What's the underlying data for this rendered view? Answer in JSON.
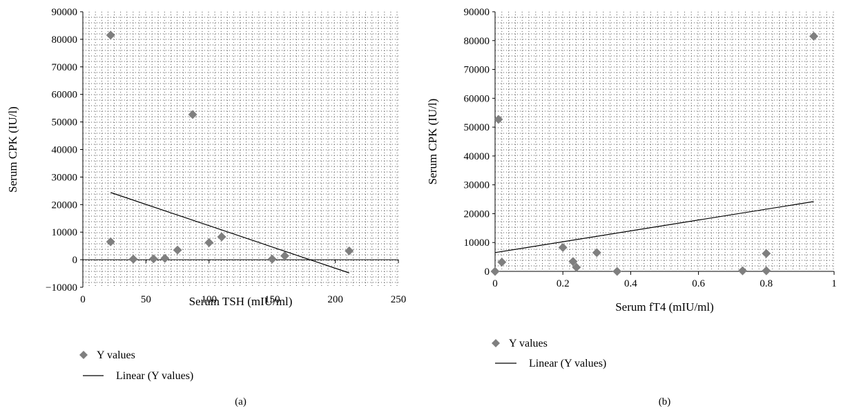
{
  "chart_data": [
    {
      "type": "scatter",
      "panel_label": "(a)",
      "xlabel": "Serum TSH (mIU/ml)",
      "ylabel": "Serum CPK (IU/l)",
      "xlim": [
        0,
        250
      ],
      "ylim": [
        -10000,
        90000
      ],
      "xticks": [
        0,
        50,
        100,
        150,
        200,
        250
      ],
      "yticks": [
        -10000,
        0,
        10000,
        20000,
        30000,
        40000,
        50000,
        60000,
        70000,
        80000,
        90000
      ],
      "grid": "dotted",
      "legend_position": "bottom-left",
      "series": [
        {
          "name": "Y values",
          "kind": "scatter",
          "marker": "diamond",
          "color": "#7f7f7f",
          "points": [
            {
              "x": 22,
              "y": 81500
            },
            {
              "x": 22,
              "y": 6500
            },
            {
              "x": 40,
              "y": 200
            },
            {
              "x": 56,
              "y": 300
            },
            {
              "x": 65,
              "y": 500
            },
            {
              "x": 75,
              "y": 3500
            },
            {
              "x": 87,
              "y": 52700
            },
            {
              "x": 100,
              "y": 6200
            },
            {
              "x": 110,
              "y": 8300
            },
            {
              "x": 150,
              "y": 200
            },
            {
              "x": 160,
              "y": 1400
            },
            {
              "x": 211,
              "y": 3200
            }
          ]
        },
        {
          "name": "Linear (Y values)",
          "kind": "line",
          "color": "#000000",
          "points": [
            {
              "x": 22,
              "y": 24400
            },
            {
              "x": 211,
              "y": -4800
            }
          ]
        }
      ]
    },
    {
      "type": "scatter",
      "panel_label": "(b)",
      "xlabel": "Serum fT4 (mIU/ml)",
      "ylabel": "Serum CPK (IU/l)",
      "xlim": [
        0,
        1
      ],
      "ylim": [
        0,
        90000
      ],
      "xticks": [
        0,
        0.2,
        0.4,
        0.6,
        0.8,
        1
      ],
      "yticks": [
        0,
        10000,
        20000,
        30000,
        40000,
        50000,
        60000,
        70000,
        80000,
        90000
      ],
      "grid": "dotted",
      "legend_position": "bottom-left",
      "series": [
        {
          "name": "Y values",
          "kind": "scatter",
          "marker": "diamond",
          "color": "#7f7f7f",
          "points": [
            {
              "x": 0.0,
              "y": 0
            },
            {
              "x": 0.01,
              "y": 52700
            },
            {
              "x": 0.02,
              "y": 3200
            },
            {
              "x": 0.2,
              "y": 8300
            },
            {
              "x": 0.23,
              "y": 3400
            },
            {
              "x": 0.24,
              "y": 1400
            },
            {
              "x": 0.3,
              "y": 6500
            },
            {
              "x": 0.36,
              "y": 0
            },
            {
              "x": 0.73,
              "y": 200
            },
            {
              "x": 0.8,
              "y": 6200
            },
            {
              "x": 0.8,
              "y": 200
            },
            {
              "x": 0.94,
              "y": 81500
            }
          ]
        },
        {
          "name": "Linear (Y values)",
          "kind": "line",
          "color": "#000000",
          "points": [
            {
              "x": 0.0,
              "y": 6500
            },
            {
              "x": 0.94,
              "y": 24200
            }
          ]
        }
      ]
    }
  ]
}
